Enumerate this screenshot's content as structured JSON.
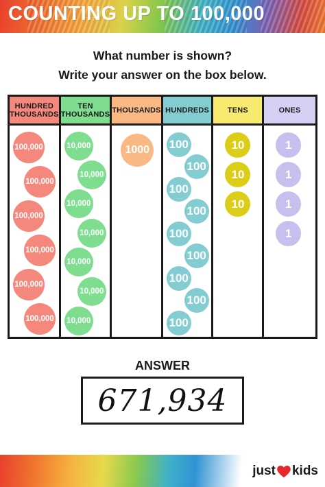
{
  "header": {
    "title": "COUNTING UP TO 100,000"
  },
  "instructions": {
    "line1": "What number is shown?",
    "line2": "Write your answer on the box below."
  },
  "columns": [
    {
      "key": "hundred_thousands",
      "header_line1": "HUNDRED",
      "header_line2": "THOUSANDS",
      "header_color": "#f4887c",
      "disc_label": "100,000",
      "disc_color": "#f4887c",
      "count": 6
    },
    {
      "key": "ten_thousands",
      "header_line1": "TEN",
      "header_line2": "THOUSANDS",
      "header_color": "#7edd8e",
      "disc_label": "10,000",
      "disc_color": "#7edd8e",
      "count": 7
    },
    {
      "key": "thousands",
      "header_line1": "THOUSANDS",
      "header_line2": "",
      "header_color": "#f9b884",
      "disc_label": "1000",
      "disc_color": "#f9b884",
      "count": 1
    },
    {
      "key": "hundreds",
      "header_line1": "HUNDREDS",
      "header_line2": "",
      "header_color": "#83cdd2",
      "disc_label": "100",
      "disc_color": "#83cdd2",
      "count": 9
    },
    {
      "key": "tens",
      "header_line1": "TENS",
      "header_line2": "",
      "header_color": "#f7ea6e",
      "disc_label": "10",
      "disc_color": "#dccd19",
      "count": 3
    },
    {
      "key": "ones",
      "header_line1": "ONES",
      "header_line2": "",
      "header_color": "#d5d1f4",
      "disc_label": "1",
      "disc_color": "#c6c0ee",
      "count": 4
    }
  ],
  "answer": {
    "label": "ANSWER",
    "value": "671,934"
  },
  "brand": {
    "text_left": "just",
    "text_right": "kids",
    "heart_color": "#e8262f"
  }
}
